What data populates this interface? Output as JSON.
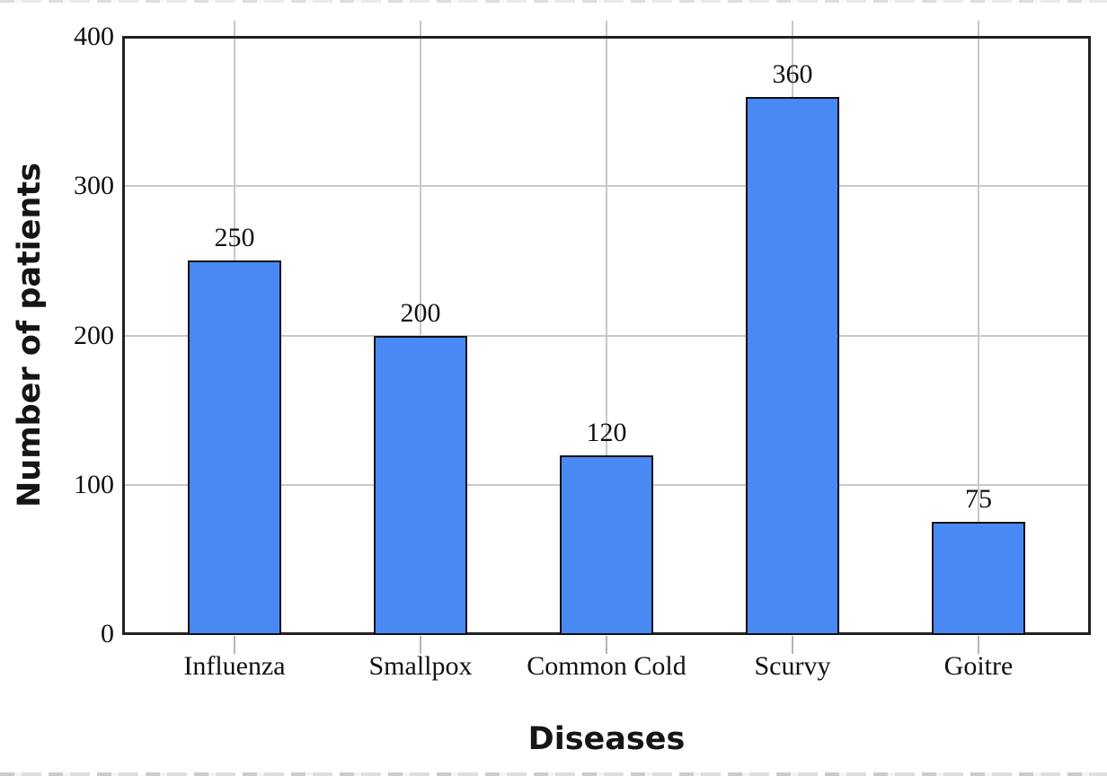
{
  "chart_data": {
    "type": "bar",
    "title": "",
    "xlabel": "Diseases",
    "ylabel": "Number of patients",
    "categories": [
      "Influenza",
      "Smallpox",
      "Common Cold",
      "Scurvy",
      "Goitre"
    ],
    "values": [
      250,
      200,
      120,
      360,
      75
    ],
    "bar_labels": [
      "250",
      "200",
      "120",
      "360",
      "75"
    ],
    "ylim": [
      0,
      400
    ],
    "yticks": [
      0,
      100,
      200,
      300,
      400
    ],
    "grid": "on",
    "legend": "none",
    "colors": {
      "bar_fill": "#4889F3",
      "bar_border": "#101010",
      "grid_line": "#c8c8c8",
      "tick_mark": "#b5b5b5",
      "axis_frame": "#222222",
      "text": "#111111"
    }
  }
}
